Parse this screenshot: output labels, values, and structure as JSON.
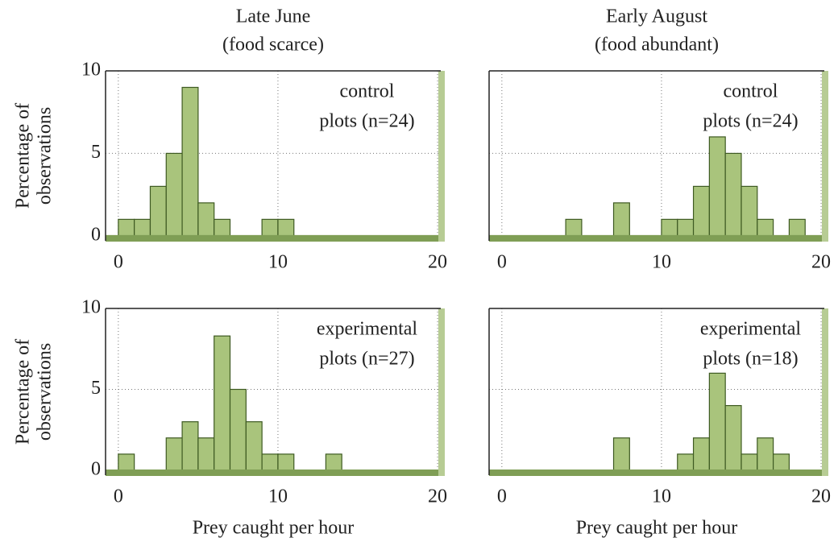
{
  "chart_data": [
    {
      "type": "histogram",
      "title": "Late June",
      "subtitle": "(food scarce)",
      "ylabel": [
        "Percentage of",
        "observations"
      ],
      "annotation": [
        "control",
        "plots (n=24)"
      ],
      "bins": [
        0,
        1,
        2,
        3,
        4,
        5,
        6,
        7,
        8,
        9,
        10,
        11,
        12,
        13,
        14,
        15,
        16,
        17,
        18,
        19,
        20
      ],
      "values": [
        1,
        1,
        3,
        5,
        9,
        2,
        1,
        0,
        0,
        1,
        1,
        0,
        0,
        0,
        0,
        0,
        0,
        0,
        0,
        0
      ],
      "color": "#a9c47c",
      "xlim": [
        -0.8,
        20.2
      ],
      "ylim": [
        -0.3,
        10
      ],
      "xticks": [
        0,
        10,
        20
      ],
      "yticks": [
        0,
        5,
        10
      ],
      "grid": true
    },
    {
      "type": "histogram",
      "title": "Early August",
      "subtitle": "(food abundant)",
      "annotation": [
        "control",
        "plots (n=24)"
      ],
      "bins": [
        0,
        1,
        2,
        3,
        4,
        5,
        6,
        7,
        8,
        9,
        10,
        11,
        12,
        13,
        14,
        15,
        16,
        17,
        18,
        19,
        20
      ],
      "values": [
        0,
        0,
        0,
        0,
        1,
        0,
        0,
        2,
        0,
        0,
        1,
        1,
        3,
        6,
        5,
        3,
        1,
        0,
        1,
        0
      ],
      "color": "#a9c47c",
      "xlim": [
        -0.8,
        20.2
      ],
      "ylim": [
        -0.3,
        10
      ],
      "xticks": [
        0,
        10,
        20
      ],
      "yticks": [
        0,
        5,
        10
      ],
      "grid": true
    },
    {
      "type": "histogram",
      "ylabel": [
        "Percentage of",
        "observations"
      ],
      "xlabel": "Prey caught per hour",
      "annotation": [
        "experimental",
        "plots (n=27)"
      ],
      "bins": [
        0,
        1,
        2,
        3,
        4,
        5,
        6,
        7,
        8,
        9,
        10,
        11,
        12,
        13,
        14,
        15,
        16,
        17,
        18,
        19,
        20
      ],
      "values": [
        1,
        0,
        0,
        2,
        3,
        2,
        8.3,
        5,
        3,
        1,
        1,
        0,
        0,
        1,
        0,
        0,
        0,
        0,
        0,
        0
      ],
      "color": "#a9c47c",
      "xlim": [
        -0.8,
        20.2
      ],
      "ylim": [
        -0.3,
        10
      ],
      "xticks": [
        0,
        10,
        20
      ],
      "yticks": [
        0,
        5,
        10
      ],
      "grid": true
    },
    {
      "type": "histogram",
      "xlabel": "Prey caught per hour",
      "annotation": [
        "experimental",
        "plots (n=18)"
      ],
      "bins": [
        0,
        1,
        2,
        3,
        4,
        5,
        6,
        7,
        8,
        9,
        10,
        11,
        12,
        13,
        14,
        15,
        16,
        17,
        18,
        19,
        20
      ],
      "values": [
        0,
        0,
        0,
        0,
        0,
        0,
        0,
        2,
        0,
        0,
        0,
        1,
        2,
        6,
        4,
        1,
        2,
        1,
        0,
        0
      ],
      "color": "#a9c47c",
      "xlim": [
        -0.8,
        20.2
      ],
      "ylim": [
        -0.3,
        10
      ],
      "xticks": [
        0,
        10,
        20
      ],
      "yticks": [
        0,
        5,
        10
      ],
      "grid": true
    }
  ]
}
